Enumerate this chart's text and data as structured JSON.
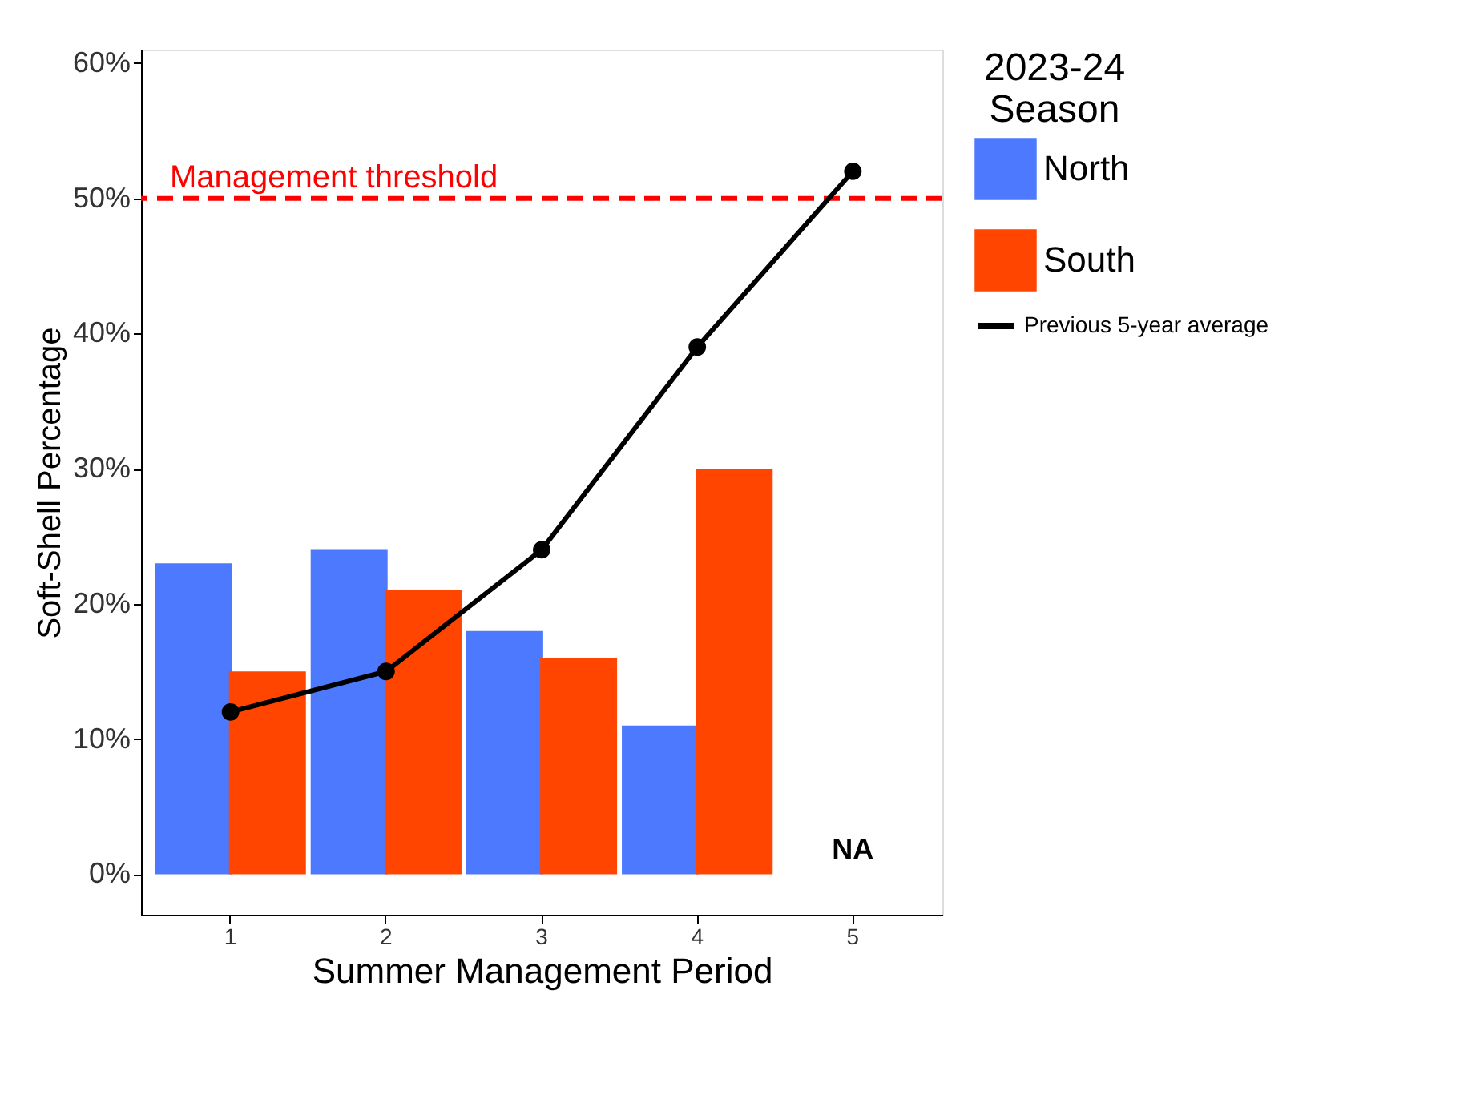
{
  "chart_data": {
    "type": "bar",
    "xlabel": "Summer Management Period",
    "ylabel": "Soft-Shell Percentage",
    "legend_title": "2023-24 Season",
    "categories": [
      "1",
      "2",
      "3",
      "4",
      "5"
    ],
    "series": [
      {
        "name": "North",
        "color": "#4d79ff",
        "values": [
          23,
          24,
          18,
          11,
          null
        ]
      },
      {
        "name": "South",
        "color": "#ff4500",
        "values": [
          15,
          21,
          16,
          30,
          null
        ]
      },
      {
        "name": "Previous 5-year average",
        "type": "line",
        "color": "#000000",
        "marker": "circle",
        "values": [
          12,
          15,
          24,
          39,
          52
        ]
      }
    ],
    "ylim": [
      -3,
      61
    ],
    "yticks": [
      {
        "value": 0,
        "label": "0%"
      },
      {
        "value": 10,
        "label": "10%"
      },
      {
        "value": 20,
        "label": "20%"
      },
      {
        "value": 30,
        "label": "30%"
      },
      {
        "value": 40,
        "label": "40%"
      },
      {
        "value": 50,
        "label": "50%"
      },
      {
        "value": 60,
        "label": "60%"
      }
    ],
    "ref_lines": [
      {
        "axis": "y",
        "value": 50,
        "label": "Management threshold",
        "color": "#ff0000",
        "line_style": "dashed"
      }
    ],
    "annotations": [
      "NA"
    ],
    "grid": false,
    "legend": "right"
  }
}
